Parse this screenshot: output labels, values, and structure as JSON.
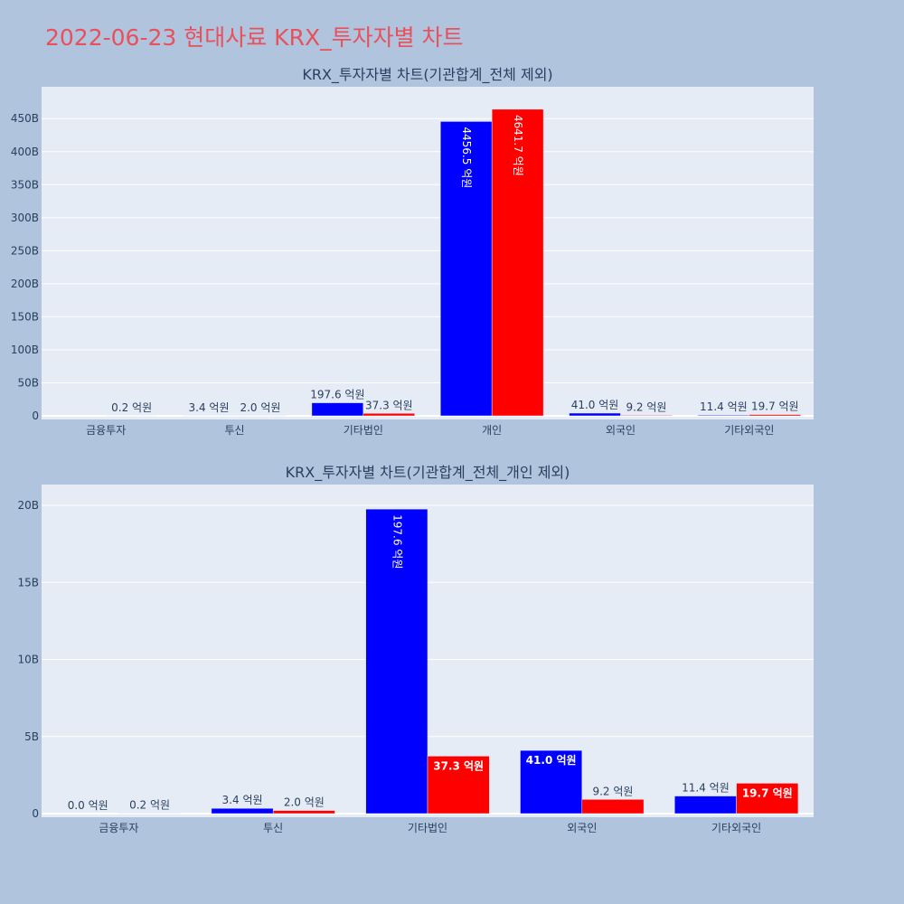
{
  "page": {
    "title": "2022-06-23 현대사료 KRX_투자자별 차트",
    "background": "#b0c4de",
    "title_color": "#e8505b",
    "plot_background": "#e5ecf6"
  },
  "chart_data": [
    {
      "type": "bar",
      "title": "KRX_투자자별 차트(기관합계_전체 제외)",
      "categories": [
        "금융투자",
        "투신",
        "기타법인",
        "개인",
        "외국인",
        "기타외국인"
      ],
      "ylim": [
        0,
        490
      ],
      "yticks": [
        0,
        50,
        100,
        150,
        200,
        250,
        300,
        350,
        400,
        450
      ],
      "ytick_labels": [
        "0",
        "50B",
        "100B",
        "150B",
        "200B",
        "250B",
        "300B",
        "350B",
        "400B",
        "450B"
      ],
      "grid": true,
      "series": [
        {
          "color": "#0000ff",
          "values": [
            0,
            0.34,
            19.76,
            445.65,
            4.1,
            1.14
          ],
          "labels": [
            "",
            "3.4 억원",
            "197.6 억원",
            "4456.5 억원",
            "41.0 억원",
            "11.4 억원"
          ]
        },
        {
          "color": "#ff0000",
          "values": [
            0.02,
            0.2,
            3.73,
            464.17,
            0.92,
            1.97
          ],
          "labels": [
            "0.2 억원",
            "2.0 억원",
            "37.3 억원",
            "4641.7 억원",
            "9.2 억원",
            "19.7 억원"
          ]
        }
      ]
    },
    {
      "type": "bar",
      "title": "KRX_투자자별 차트(기관합계_전체_개인 제외)",
      "categories": [
        "금융투자",
        "투신",
        "기타법인",
        "외국인",
        "기타외국인"
      ],
      "ylim": [
        0,
        21
      ],
      "yticks": [
        0,
        5,
        10,
        15,
        20
      ],
      "ytick_labels": [
        "0",
        "5B",
        "10B",
        "15B",
        "20B"
      ],
      "grid": true,
      "series": [
        {
          "color": "#0000ff",
          "values": [
            0,
            0.34,
            19.76,
            4.1,
            1.14
          ],
          "labels": [
            "0.0 억원",
            "3.4 억원",
            "197.6 억원",
            "41.0 억원",
            "11.4 억원"
          ]
        },
        {
          "color": "#ff0000",
          "values": [
            0.02,
            0.2,
            3.73,
            0.92,
            1.97
          ],
          "labels": [
            "0.2 억원",
            "2.0 억원",
            "37.3 억원",
            "9.2 억원",
            "19.7 억원"
          ]
        }
      ]
    }
  ]
}
